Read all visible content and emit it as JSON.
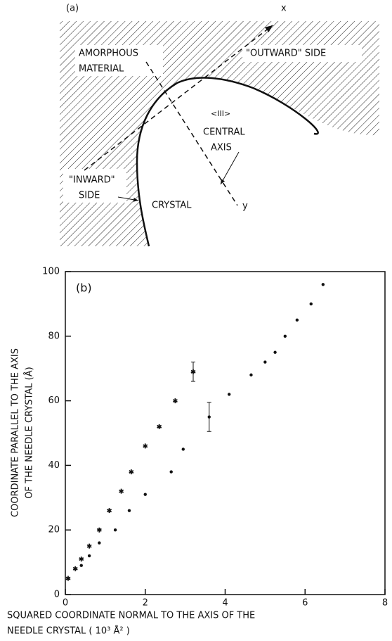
{
  "diagram": {
    "panel_label": "(a)",
    "labels": [
      "AMORPHOUS",
      "MATERIAL",
      "\"OUTWARD\" SIDE",
      "<III>",
      "CENTRAL",
      "AXIS",
      "x",
      "y",
      "\"INWARD\"",
      "SIDE",
      "CRYSTAL"
    ]
  },
  "chart_data": {
    "type": "scatter",
    "panel_label": "(b)",
    "xlabel": [
      "SQUARED COORDINATE NORMAL TO THE AXIS OF THE",
      "NEEDLE CRYSTAL  ( 10³ Å² )"
    ],
    "ylabel": [
      "COORDINATE PARALLEL TO THE AXIS",
      "OF THE NEEDLE CRYSTAL (Å)"
    ],
    "xlim": [
      0,
      8
    ],
    "xticks": [
      0,
      2,
      4,
      6,
      8
    ],
    "ylim": [
      0,
      100
    ],
    "yticks": [
      0,
      20,
      40,
      60,
      80,
      100
    ],
    "series": [
      {
        "marker": "asterisk",
        "color": "#111111",
        "x": [
          0.07,
          0.25,
          0.4,
          0.6,
          0.85,
          1.1,
          1.4,
          1.65,
          2.0,
          2.35,
          2.75,
          3.2
        ],
        "values": [
          5,
          8,
          11,
          15,
          20,
          26,
          32,
          38,
          46,
          52,
          60,
          69
        ],
        "errors": [
          null,
          null,
          null,
          null,
          null,
          null,
          null,
          null,
          null,
          null,
          null,
          3
        ]
      },
      {
        "marker": "dot",
        "color": "#111111",
        "x": [
          0.4,
          0.6,
          0.85,
          1.25,
          1.6,
          2.0,
          2.65,
          2.95,
          3.6,
          4.1,
          4.65,
          5.0,
          5.25,
          5.5,
          5.8,
          6.15,
          6.45
        ],
        "values": [
          9,
          12,
          16,
          20,
          26,
          31,
          38,
          45,
          55,
          62,
          68,
          72,
          75,
          80,
          85,
          90,
          96
        ],
        "errors": [
          null,
          null,
          null,
          null,
          null,
          null,
          null,
          null,
          4.5,
          null,
          null,
          null,
          null,
          null,
          null,
          null,
          null
        ]
      }
    ]
  }
}
